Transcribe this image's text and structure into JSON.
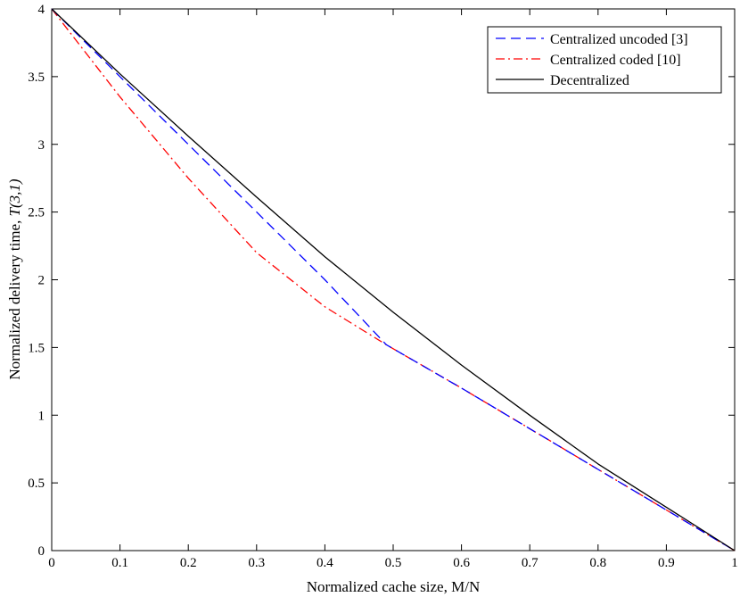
{
  "chart_data": {
    "type": "line",
    "xlabel": "Normalized cache size, M/N",
    "ylabel_prefix": "Normalized delivery time, ",
    "ylabel_symbol": "T(3,1)",
    "xlim": [
      0,
      1
    ],
    "ylim": [
      0,
      4
    ],
    "x_ticks": [
      "0",
      "0.1",
      "0.2",
      "0.3",
      "0.4",
      "0.5",
      "0.6",
      "0.7",
      "0.8",
      "0.9",
      "1"
    ],
    "y_ticks": [
      "0",
      "0.5",
      "1",
      "1.5",
      "2",
      "2.5",
      "3",
      "3.5",
      "4"
    ],
    "grid": false,
    "legend_position": "top-right",
    "series": [
      {
        "name": "Centralized uncoded [3]",
        "color": "#0000ff",
        "dash": "dashed",
        "x": [
          0,
          0.1,
          0.2,
          0.3,
          0.4,
          0.49,
          0.6,
          0.7,
          0.8,
          0.9,
          1.0
        ],
        "y": [
          4.0,
          3.5,
          3.0,
          2.5,
          2.0,
          1.52,
          1.2,
          0.9,
          0.6,
          0.3,
          0.0
        ]
      },
      {
        "name": "Centralized coded [10]",
        "color": "#ff0000",
        "dash": "dashdot",
        "x": [
          0,
          0.1,
          0.2,
          0.3,
          0.4,
          0.49,
          0.6,
          0.7,
          0.8,
          0.9,
          1.0
        ],
        "y": [
          4.0,
          3.35,
          2.75,
          2.2,
          1.8,
          1.52,
          1.2,
          0.9,
          0.6,
          0.3,
          0.0
        ]
      },
      {
        "name": "Decentralized",
        "color": "#000000",
        "dash": "solid",
        "x": [
          0,
          0.1,
          0.2,
          0.3,
          0.4,
          0.5,
          0.6,
          0.7,
          0.8,
          0.9,
          1.0
        ],
        "y": [
          4.0,
          3.52,
          3.06,
          2.61,
          2.17,
          1.76,
          1.37,
          1.0,
          0.64,
          0.32,
          0.0
        ]
      }
    ]
  }
}
